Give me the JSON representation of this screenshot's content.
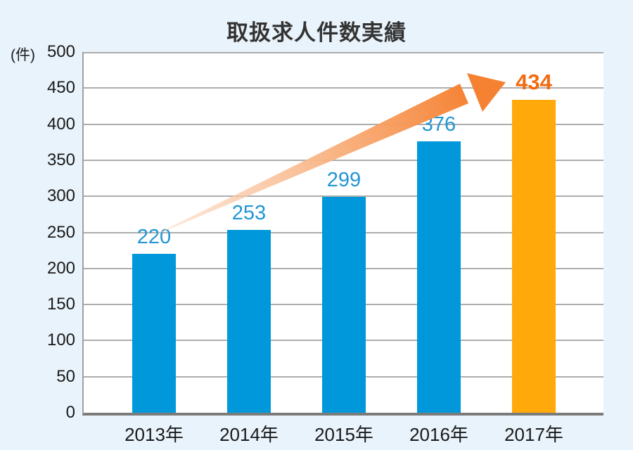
{
  "chart_data": {
    "type": "bar",
    "title": "取扱求人件数実績",
    "y_unit": "(件)",
    "categories": [
      "2013年",
      "2014年",
      "2015年",
      "2016年",
      "2017年"
    ],
    "values": [
      220,
      253,
      299,
      376,
      434
    ],
    "ylim": [
      0,
      500
    ],
    "ytick_step": 50,
    "yticks": [
      0,
      50,
      100,
      150,
      200,
      250,
      300,
      350,
      400,
      450,
      500
    ],
    "grid": true,
    "legend": "none",
    "bar_colors": [
      "#0098DB",
      "#0098DB",
      "#0098DB",
      "#0098DB",
      "#FFA90B"
    ],
    "value_label_colors": [
      "#2196D4",
      "#2196D4",
      "#2196D4",
      "#2196D4",
      "#F26A10"
    ],
    "highlight_index": 4,
    "annotation_arrow": {
      "description": "upward trend arrow from above 2013 bar to 2017 value label",
      "color_start": "#FBD9C2",
      "color_mid": "#F9B98C",
      "color_end": "#F58233"
    }
  },
  "colors": {
    "page_background": "#E9F3FB",
    "plot_background": "#FFFFFF",
    "gridline": "#ADADAD",
    "axis_left": "#A0A0A0",
    "axis_bottom": "#7B7B7B",
    "title_text": "#333333",
    "tick_text": "#1A1A1A"
  }
}
